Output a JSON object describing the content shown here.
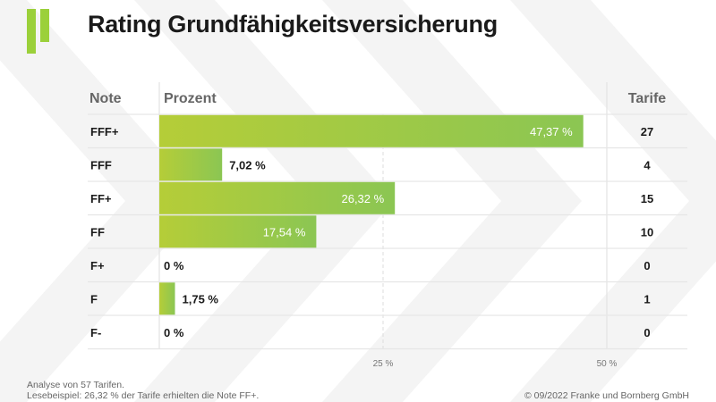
{
  "title": "Rating Grundfähigkeitsversicherung",
  "colors": {
    "bar_start": "#b5cd38",
    "bar_end": "#8bc653",
    "logo": "#9bd03a",
    "text": "#1a1a1a",
    "muted": "#666666"
  },
  "footer": {
    "line1": "Analyse von 57 Tarifen.",
    "line2": "Lesebeispiel: 26,32 % der Tarife erhielten die Note FF+.",
    "copyright": "© 09/2022 Franke und Bornberg GmbH"
  },
  "chart_data": {
    "type": "bar",
    "orientation": "horizontal",
    "title": "Rating Grundfähigkeitsversicherung",
    "columns": {
      "note": "Note",
      "prozent": "Prozent",
      "tarife": "Tarife"
    },
    "categories": [
      "FFF+",
      "FFF",
      "FF+",
      "FF",
      "F+",
      "F",
      "F-"
    ],
    "values": [
      47.37,
      7.02,
      26.32,
      17.54,
      0,
      1.75,
      0
    ],
    "value_labels": [
      "47,37 %",
      "7,02 %",
      "26,32 %",
      "17,54 %",
      "0 %",
      "1,75 %",
      "0 %"
    ],
    "counts": [
      "27",
      "4",
      "15",
      "10",
      "0",
      "1",
      "0"
    ],
    "xlim": [
      0,
      50
    ],
    "xticks": [
      25,
      50
    ],
    "xtick_labels": [
      "25 %",
      "50 %"
    ],
    "grid": true
  }
}
